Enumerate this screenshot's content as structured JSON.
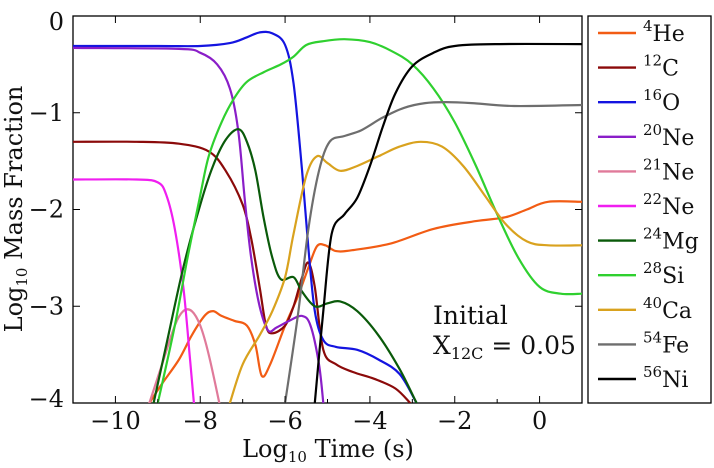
{
  "chart_data": {
    "type": "line",
    "xlabel_main": "Log",
    "xlabel_sub": "10",
    "xlabel_rest": " Time (s)",
    "ylabel_main": "Log",
    "ylabel_sub": "10",
    "ylabel_rest": " Mass Fraction",
    "xlim": [
      -11,
      1
    ],
    "ylim": [
      -4,
      0
    ],
    "xticks": [
      -10,
      -8,
      -6,
      -4,
      -2,
      0
    ],
    "yticks": [
      0,
      -1,
      -2,
      -3,
      -4
    ],
    "xtick_labels": [
      "−10",
      "−8",
      "−6",
      "−4",
      "−2",
      "0"
    ],
    "ytick_labels": [
      "0",
      "−1",
      "−2",
      "−3",
      "−4"
    ],
    "annotation": {
      "line1": "Initial",
      "line2_main": "X",
      "line2_sub": "12C",
      "line2_rest": " = 0.05"
    },
    "series": [
      {
        "name": "He",
        "mass": "4",
        "color": "#f25c14",
        "points": [
          [
            -9.2,
            -4.0
          ],
          [
            -8.9,
            -3.8
          ],
          [
            -8.5,
            -3.55
          ],
          [
            -8.2,
            -3.3
          ],
          [
            -7.9,
            -3.1
          ],
          [
            -7.7,
            -3.05
          ],
          [
            -7.5,
            -3.1
          ],
          [
            -7.2,
            -3.15
          ],
          [
            -6.9,
            -3.2
          ],
          [
            -6.7,
            -3.4
          ],
          [
            -6.55,
            -3.72
          ],
          [
            -6.35,
            -3.6
          ],
          [
            -6.0,
            -3.2
          ],
          [
            -5.7,
            -2.9
          ],
          [
            -5.45,
            -2.6
          ],
          [
            -5.25,
            -2.38
          ],
          [
            -5.05,
            -2.37
          ],
          [
            -4.8,
            -2.43
          ],
          [
            -4.4,
            -2.42
          ],
          [
            -3.5,
            -2.35
          ],
          [
            -2.5,
            -2.2
          ],
          [
            -1.5,
            -2.12
          ],
          [
            -0.8,
            -2.08
          ],
          [
            -0.3,
            -2.0
          ],
          [
            0.2,
            -1.92
          ],
          [
            1.0,
            -1.92
          ]
        ]
      },
      {
        "name": "C",
        "mass": "12",
        "color": "#8b0a0a",
        "points": [
          [
            -11,
            -1.3
          ],
          [
            -9.5,
            -1.3
          ],
          [
            -8.5,
            -1.32
          ],
          [
            -7.8,
            -1.4
          ],
          [
            -7.4,
            -1.6
          ],
          [
            -7.0,
            -1.95
          ],
          [
            -6.8,
            -2.3
          ],
          [
            -6.6,
            -2.8
          ],
          [
            -6.45,
            -3.2
          ],
          [
            -6.3,
            -3.28
          ],
          [
            -6.0,
            -3.2
          ],
          [
            -5.8,
            -3.0
          ],
          [
            -5.6,
            -2.7
          ],
          [
            -5.45,
            -2.55
          ],
          [
            -5.3,
            -2.8
          ],
          [
            -5.1,
            -3.45
          ],
          [
            -4.8,
            -3.6
          ],
          [
            -4.4,
            -3.68
          ],
          [
            -3.9,
            -3.75
          ],
          [
            -3.4,
            -3.85
          ],
          [
            -3.05,
            -4.0
          ]
        ]
      },
      {
        "name": "O",
        "mass": "16",
        "color": "#1414e0",
        "points": [
          [
            -11,
            -0.31
          ],
          [
            -9,
            -0.31
          ],
          [
            -8,
            -0.31
          ],
          [
            -7.3,
            -0.28
          ],
          [
            -6.9,
            -0.22
          ],
          [
            -6.6,
            -0.17
          ],
          [
            -6.3,
            -0.18
          ],
          [
            -6.0,
            -0.3
          ],
          [
            -5.8,
            -0.7
          ],
          [
            -5.6,
            -1.6
          ],
          [
            -5.45,
            -2.4
          ],
          [
            -5.3,
            -3.05
          ],
          [
            -5.1,
            -3.35
          ],
          [
            -4.8,
            -3.42
          ],
          [
            -4.3,
            -3.45
          ],
          [
            -3.8,
            -3.55
          ],
          [
            -3.3,
            -3.7
          ],
          [
            -2.9,
            -4.0
          ]
        ]
      },
      {
        "name": "Ne",
        "mass": "20",
        "color": "#8a1ec8",
        "points": [
          [
            -11,
            -0.33
          ],
          [
            -8.5,
            -0.34
          ],
          [
            -8.0,
            -0.38
          ],
          [
            -7.6,
            -0.5
          ],
          [
            -7.3,
            -0.75
          ],
          [
            -7.1,
            -1.2
          ],
          [
            -6.95,
            -1.9
          ],
          [
            -6.8,
            -2.5
          ],
          [
            -6.6,
            -3.0
          ],
          [
            -6.4,
            -3.25
          ],
          [
            -6.2,
            -3.22
          ],
          [
            -5.9,
            -3.15
          ],
          [
            -5.6,
            -3.1
          ],
          [
            -5.4,
            -3.2
          ],
          [
            -5.2,
            -3.6
          ],
          [
            -5.1,
            -4.0
          ]
        ]
      },
      {
        "name": "Ne",
        "mass": "21",
        "color": "#e07a9a",
        "points": [
          [
            -9.2,
            -4.0
          ],
          [
            -8.9,
            -3.6
          ],
          [
            -8.6,
            -3.2
          ],
          [
            -8.4,
            -3.05
          ],
          [
            -8.2,
            -3.05
          ],
          [
            -8.0,
            -3.2
          ],
          [
            -7.8,
            -3.5
          ],
          [
            -7.55,
            -4.0
          ]
        ]
      },
      {
        "name": "Ne",
        "mass": "22",
        "color": "#f01ef0",
        "points": [
          [
            -11,
            -1.69
          ],
          [
            -9.5,
            -1.69
          ],
          [
            -9.0,
            -1.72
          ],
          [
            -8.8,
            -1.85
          ],
          [
            -8.6,
            -2.2
          ],
          [
            -8.4,
            -2.8
          ],
          [
            -8.25,
            -3.5
          ],
          [
            -8.15,
            -4.0
          ]
        ]
      },
      {
        "name": "Mg",
        "mass": "24",
        "color": "#0a5a0a",
        "points": [
          [
            -9.1,
            -4.0
          ],
          [
            -8.8,
            -3.4
          ],
          [
            -8.4,
            -2.6
          ],
          [
            -8.0,
            -1.95
          ],
          [
            -7.7,
            -1.55
          ],
          [
            -7.4,
            -1.28
          ],
          [
            -7.1,
            -1.17
          ],
          [
            -6.9,
            -1.3
          ],
          [
            -6.7,
            -1.6
          ],
          [
            -6.5,
            -2.1
          ],
          [
            -6.3,
            -2.5
          ],
          [
            -6.1,
            -2.72
          ],
          [
            -5.8,
            -2.7
          ],
          [
            -5.6,
            -2.85
          ],
          [
            -5.3,
            -3.0
          ],
          [
            -5.0,
            -2.97
          ],
          [
            -4.7,
            -2.95
          ],
          [
            -4.3,
            -3.05
          ],
          [
            -3.8,
            -3.3
          ],
          [
            -3.3,
            -3.65
          ],
          [
            -2.9,
            -4.0
          ]
        ]
      },
      {
        "name": "Si",
        "mass": "28",
        "color": "#2fd02f",
        "points": [
          [
            -9.0,
            -4.0
          ],
          [
            -8.6,
            -3.2
          ],
          [
            -8.3,
            -2.5
          ],
          [
            -8.0,
            -1.85
          ],
          [
            -7.8,
            -1.45
          ],
          [
            -7.5,
            -1.1
          ],
          [
            -7.2,
            -0.85
          ],
          [
            -6.9,
            -0.68
          ],
          [
            -6.5,
            -0.58
          ],
          [
            -6.1,
            -0.5
          ],
          [
            -5.8,
            -0.42
          ],
          [
            -5.5,
            -0.3
          ],
          [
            -5.1,
            -0.26
          ],
          [
            -4.6,
            -0.24
          ],
          [
            -4.0,
            -0.27
          ],
          [
            -3.5,
            -0.36
          ],
          [
            -3.0,
            -0.5
          ],
          [
            -2.5,
            -0.75
          ],
          [
            -2.0,
            -1.1
          ],
          [
            -1.5,
            -1.55
          ],
          [
            -1.0,
            -2.05
          ],
          [
            -0.5,
            -2.5
          ],
          [
            0,
            -2.8
          ],
          [
            0.5,
            -2.87
          ],
          [
            1.0,
            -2.87
          ]
        ]
      },
      {
        "name": "Ca",
        "mass": "40",
        "color": "#d9a21e",
        "points": [
          [
            -7.3,
            -4.0
          ],
          [
            -7.0,
            -3.6
          ],
          [
            -6.6,
            -3.3
          ],
          [
            -6.3,
            -3.05
          ],
          [
            -6.0,
            -2.7
          ],
          [
            -5.8,
            -2.25
          ],
          [
            -5.5,
            -1.65
          ],
          [
            -5.25,
            -1.45
          ],
          [
            -5.0,
            -1.52
          ],
          [
            -4.7,
            -1.6
          ],
          [
            -4.3,
            -1.55
          ],
          [
            -3.8,
            -1.45
          ],
          [
            -3.3,
            -1.35
          ],
          [
            -2.8,
            -1.3
          ],
          [
            -2.3,
            -1.35
          ],
          [
            -1.8,
            -1.55
          ],
          [
            -1.3,
            -1.85
          ],
          [
            -0.8,
            -2.15
          ],
          [
            -0.3,
            -2.33
          ],
          [
            0.2,
            -2.37
          ],
          [
            1.0,
            -2.37
          ]
        ]
      },
      {
        "name": "Fe",
        "mass": "54",
        "color": "#6e6e6e",
        "points": [
          [
            -6.0,
            -4.0
          ],
          [
            -5.7,
            -3.1
          ],
          [
            -5.45,
            -2.2
          ],
          [
            -5.2,
            -1.6
          ],
          [
            -4.95,
            -1.3
          ],
          [
            -4.6,
            -1.24
          ],
          [
            -4.2,
            -1.18
          ],
          [
            -3.7,
            -1.05
          ],
          [
            -3.2,
            -0.95
          ],
          [
            -2.7,
            -0.9
          ],
          [
            -2.2,
            -0.89
          ],
          [
            -1.6,
            -0.9
          ],
          [
            -0.6,
            -0.93
          ],
          [
            1.0,
            -0.92
          ]
        ]
      },
      {
        "name": "Ni",
        "mass": "56",
        "color": "#000000",
        "points": [
          [
            -5.3,
            -4.0
          ],
          [
            -5.1,
            -3.05
          ],
          [
            -4.9,
            -2.25
          ],
          [
            -4.6,
            -2.05
          ],
          [
            -4.3,
            -1.88
          ],
          [
            -4.0,
            -1.55
          ],
          [
            -3.7,
            -1.15
          ],
          [
            -3.4,
            -0.8
          ],
          [
            -3.0,
            -0.52
          ],
          [
            -2.5,
            -0.38
          ],
          [
            -2.0,
            -0.31
          ],
          [
            -1.0,
            -0.29
          ],
          [
            1.0,
            -0.29
          ]
        ]
      }
    ]
  }
}
